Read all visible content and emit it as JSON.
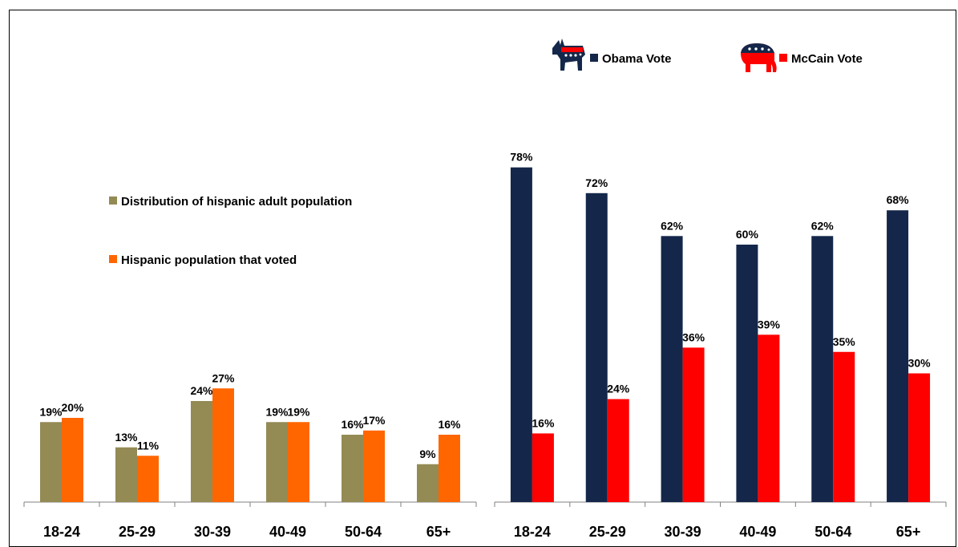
{
  "colors": {
    "distribution": "#948a54",
    "voted": "#ff6600",
    "obama": "#14274a",
    "mccain": "#ff0000",
    "axis": "#808080"
  },
  "icons": [
    "democratic-donkey-icon",
    "republican-elephant-icon"
  ],
  "chart_data": [
    {
      "type": "bar",
      "categories": [
        "18-24",
        "25-29",
        "30-39",
        "40-49",
        "50-64",
        "65+"
      ],
      "series": [
        {
          "name": "Distribution of hispanic adult population",
          "values": [
            19,
            13,
            24,
            19,
            16,
            9
          ],
          "labels": [
            "19%",
            "13%",
            "24%",
            "19%",
            "16%",
            "9%"
          ]
        },
        {
          "name": "Hispanic population that voted",
          "values": [
            20,
            11,
            27,
            19,
            17,
            16
          ],
          "labels": [
            "20%",
            "11%",
            "27%",
            "19%",
            "17%",
            "16%"
          ]
        }
      ],
      "legend": "left, middle",
      "ylim": [
        0,
        100
      ],
      "grid": false
    },
    {
      "type": "bar",
      "categories": [
        "18-24",
        "25-29",
        "30-39",
        "40-49",
        "50-64",
        "65+"
      ],
      "series": [
        {
          "name": "Obama Vote",
          "values": [
            78,
            72,
            62,
            60,
            62,
            68
          ],
          "labels": [
            "78%",
            "72%",
            "62%",
            "60%",
            "62%",
            "68%"
          ]
        },
        {
          "name": "McCain Vote",
          "values": [
            16,
            24,
            36,
            39,
            35,
            30
          ],
          "labels": [
            "16%",
            "24%",
            "36%",
            "39%",
            "35%",
            "30%"
          ]
        }
      ],
      "legend": "top",
      "ylim": [
        0,
        80
      ],
      "grid": false
    }
  ]
}
